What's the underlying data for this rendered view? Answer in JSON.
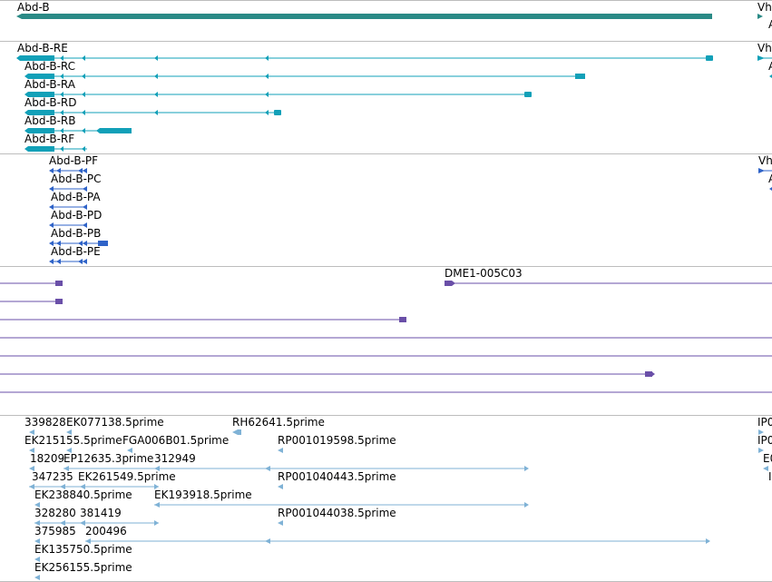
{
  "colors": {
    "gene": "#2a8a86",
    "transcript": "#12a0b8",
    "protein": "#2f63c8",
    "insertion": "#6a4fa8",
    "est": "#7fb2d6",
    "divider": "#bdbdbd"
  },
  "tracks": {
    "gene": {
      "labels": [
        "Abd-B",
        "Vh"
      ]
    },
    "transcripts": {
      "labels": [
        "Abd-B-RE",
        "Abd-B-RC",
        "Abd-B-RA",
        "Abd-B-RD",
        "Abd-B-RB",
        "Abd-B-RF",
        "Vh",
        "A",
        "A"
      ]
    },
    "proteins": {
      "labels": [
        "Abd-B-PF",
        "Abd-B-PC",
        "Abd-B-PA",
        "Abd-B-PD",
        "Abd-B-PB",
        "Abd-B-PE",
        "Vh",
        "A"
      ]
    },
    "insertions": {
      "labels": [
        "DME1-005C03"
      ]
    },
    "ests": {
      "labels": [
        "339828",
        "EK077138.5prime",
        "RH62641.5prime",
        "IP0",
        "EK215155.5prime",
        "FGA006B01.5prime",
        "RP001019598.5prime",
        "IP0",
        "18209",
        "EP12635.3prime",
        "312949",
        "E0",
        "347235",
        "EK261549.5prime",
        "RP001040443.5prime",
        "I",
        "EK238840.5prime",
        "EK193918.5prime",
        "328280",
        "381419",
        "RP001044038.5prime",
        "375985",
        "200496",
        "EK135750.5prime",
        "EK256155.5prime"
      ]
    }
  }
}
